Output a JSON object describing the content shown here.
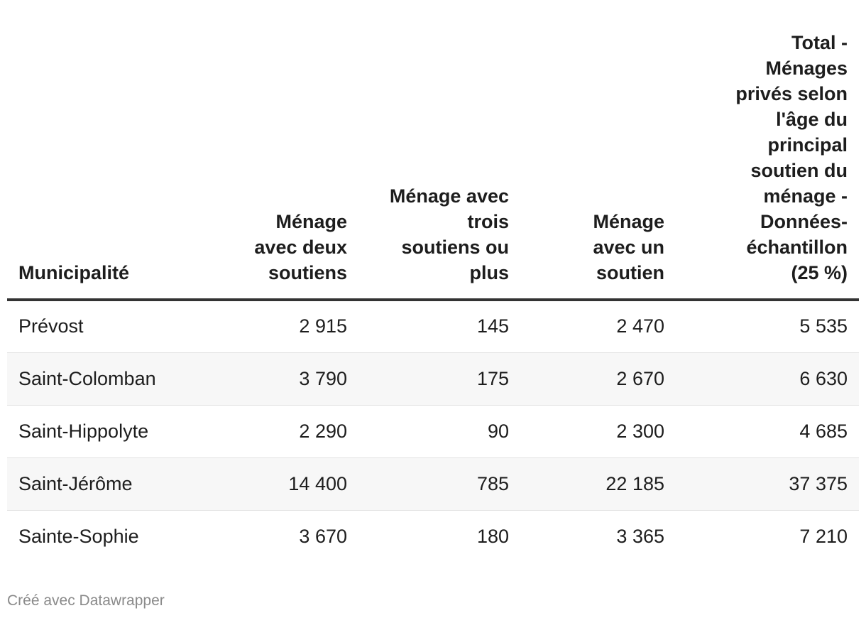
{
  "chart_data": {
    "type": "table",
    "columns": [
      "Municipalité",
      "Ménage avec deux soutiens",
      "Ménage avec trois soutiens ou plus",
      "Ménage avec un soutien",
      "Total - Ménages privés selon l'âge du principal soutien du ménage - Données-échantillon (25 %)"
    ],
    "rows": [
      {
        "municipalite": "Prévost",
        "deux": "2 915",
        "trois": "145",
        "un": "2 470",
        "total": "5 535"
      },
      {
        "municipalite": "Saint-Colomban",
        "deux": "3 790",
        "trois": "175",
        "un": "2 670",
        "total": "6 630"
      },
      {
        "municipalite": "Saint-Hippolyte",
        "deux": "2 290",
        "trois": "90",
        "un": "2 300",
        "total": "4 685"
      },
      {
        "municipalite": "Saint-Jérôme",
        "deux": "14 400",
        "trois": "785",
        "un": "22 185",
        "total": "37 375"
      },
      {
        "municipalite": "Sainte-Sophie",
        "deux": "3 670",
        "trois": "180",
        "un": "3 365",
        "total": "7 210"
      }
    ]
  },
  "footer": {
    "credit": "Créé avec Datawrapper"
  },
  "colors": {
    "header_rule": "#333333",
    "row_alt": "#f7f7f7",
    "row_rule": "#e2e2e2",
    "footer_text": "#8a8a8a"
  }
}
